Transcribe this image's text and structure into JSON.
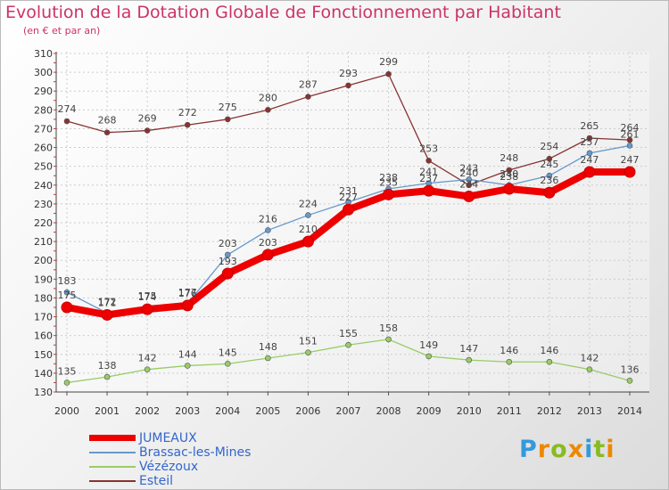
{
  "chart_data": {
    "type": "line",
    "title": "Evolution de la Dotation Globale de Fonctionnement par Habitant",
    "subtitle": "(en € et par an)",
    "x": [
      "2000",
      "2001",
      "2002",
      "2003",
      "2004",
      "2005",
      "2006",
      "2007",
      "2008",
      "2009",
      "2010",
      "2011",
      "2012",
      "2013",
      "2014"
    ],
    "ylim": [
      130,
      310
    ],
    "yticks": [
      130,
      140,
      150,
      160,
      170,
      180,
      190,
      200,
      210,
      220,
      230,
      240,
      250,
      260,
      270,
      280,
      290,
      300,
      310
    ],
    "grid": true,
    "series": [
      {
        "name": "JUMEAUX",
        "color": "#ee0000",
        "values": [
          175,
          171,
          174,
          176,
          193,
          203,
          210,
          227,
          235,
          237,
          234,
          238,
          236,
          247,
          247
        ]
      },
      {
        "name": "Brassac-les-Mines",
        "color": "#6699cc",
        "values": [
          183,
          172,
          175,
          177,
          203,
          216,
          224,
          231,
          238,
          241,
          243,
          240,
          245,
          257,
          261
        ]
      },
      {
        "name": "Vézézoux",
        "color": "#99cc66",
        "values": [
          135,
          138,
          142,
          144,
          145,
          148,
          151,
          155,
          158,
          149,
          147,
          146,
          146,
          142,
          136
        ]
      },
      {
        "name": "Esteil",
        "color": "#883333",
        "values": [
          274,
          268,
          269,
          272,
          275,
          280,
          287,
          293,
          299,
          253,
          240,
          248,
          254,
          265,
          264
        ]
      }
    ]
  },
  "brand": {
    "letters": [
      "P",
      "r",
      "o",
      "x",
      "i",
      "t",
      "i"
    ],
    "colors": [
      "#3399dd",
      "#ee8800",
      "#88bb22",
      "#ee8800",
      "#3399dd",
      "#88bb22",
      "#ee8800"
    ]
  }
}
